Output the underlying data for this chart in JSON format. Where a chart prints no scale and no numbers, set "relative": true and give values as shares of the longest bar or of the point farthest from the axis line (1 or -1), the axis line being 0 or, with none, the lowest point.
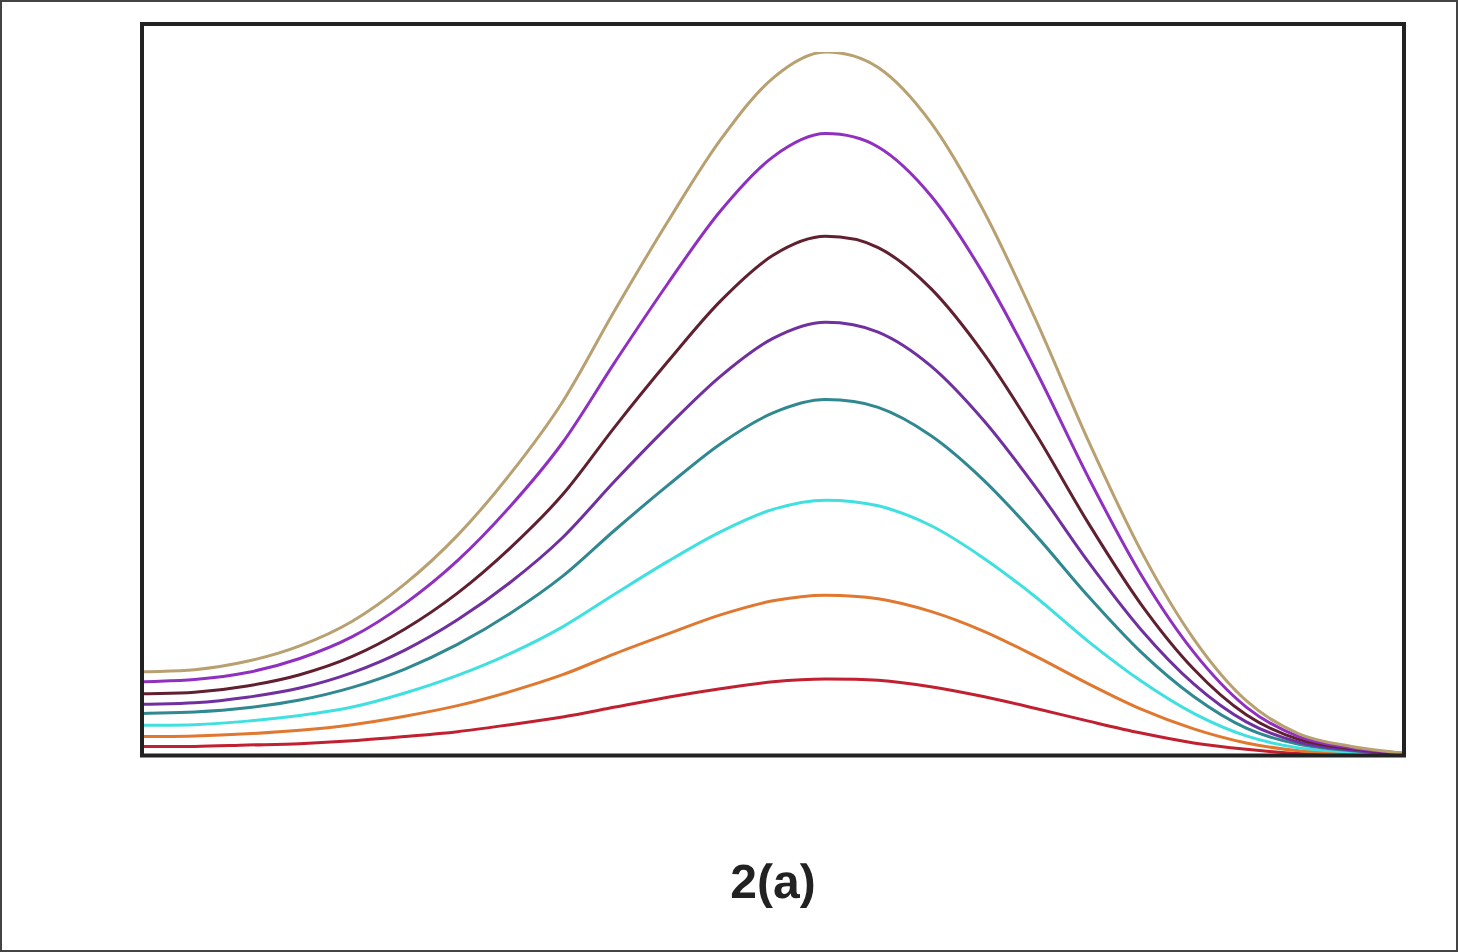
{
  "chart_data": {
    "type": "line",
    "title": "2(a)",
    "relative": true,
    "grid": false,
    "legend": false,
    "marker": "none",
    "line_style": "solid",
    "categories": [
      null,
      null,
      null,
      null,
      null,
      null,
      null,
      null,
      null,
      null,
      null,
      null,
      null,
      null,
      null,
      null,
      null,
      null,
      null,
      null,
      null,
      null,
      null,
      null,
      null
    ],
    "series": [
      {
        "color": "#b8a070",
        "values": [
          0.119,
          0.122,
          0.134,
          0.156,
          0.191,
          0.244,
          0.313,
          0.4,
          0.503,
          0.634,
          0.759,
          0.875,
          0.963,
          1,
          0.978,
          0.9,
          0.775,
          0.619,
          0.447,
          0.291,
          0.166,
          0.078,
          0.031,
          0.013,
          0.003
        ]
      },
      {
        "color": "#9030c0",
        "values": [
          0.105,
          0.108,
          0.118,
          0.138,
          0.169,
          0.216,
          0.277,
          0.354,
          0.445,
          0.56,
          0.671,
          0.774,
          0.851,
          0.884,
          0.865,
          0.796,
          0.685,
          0.547,
          0.395,
          0.257,
          0.147,
          0.069,
          0.027,
          0.011,
          0.003
        ]
      },
      {
        "color": "#602030",
        "values": [
          0.088,
          0.09,
          0.099,
          0.115,
          0.141,
          0.18,
          0.231,
          0.295,
          0.371,
          0.468,
          0.56,
          0.646,
          0.711,
          0.738,
          0.722,
          0.664,
          0.572,
          0.457,
          0.33,
          0.215,
          0.123,
          0.058,
          0.023,
          0.01,
          0.002
        ]
      },
      {
        "color": "#7030a0",
        "values": [
          0.073,
          0.075,
          0.083,
          0.096,
          0.118,
          0.15,
          0.193,
          0.246,
          0.31,
          0.391,
          0.468,
          0.539,
          0.593,
          0.616,
          0.602,
          0.554,
          0.477,
          0.381,
          0.275,
          0.179,
          0.102,
          0.048,
          0.019,
          0.008,
          0.002
        ]
      },
      {
        "color": "#308890",
        "values": [
          0.06,
          0.062,
          0.068,
          0.079,
          0.097,
          0.123,
          0.158,
          0.202,
          0.255,
          0.321,
          0.384,
          0.443,
          0.487,
          0.506,
          0.495,
          0.455,
          0.392,
          0.313,
          0.226,
          0.147,
          0.084,
          0.039,
          0.016,
          0.007,
          0.002
        ]
      },
      {
        "color": "#40e0e0",
        "values": [
          0.043,
          0.044,
          0.049,
          0.057,
          0.069,
          0.089,
          0.114,
          0.145,
          0.183,
          0.23,
          0.276,
          0.318,
          0.35,
          0.363,
          0.355,
          0.327,
          0.281,
          0.225,
          0.162,
          0.106,
          0.06,
          0.028,
          0.011,
          0.005,
          0.001
        ]
      },
      {
        "color": "#e07830",
        "values": [
          0.027,
          0.028,
          0.031,
          0.036,
          0.044,
          0.056,
          0.071,
          0.091,
          0.115,
          0.145,
          0.173,
          0.2,
          0.22,
          0.228,
          0.223,
          0.205,
          0.177,
          0.141,
          0.102,
          0.066,
          0.038,
          0.018,
          0.007,
          0.003,
          0.001
        ]
      },
      {
        "color": "#c02030",
        "values": [
          0.013,
          0.013,
          0.015,
          0.017,
          0.021,
          0.027,
          0.034,
          0.044,
          0.055,
          0.069,
          0.083,
          0.095,
          0.105,
          0.109,
          0.107,
          0.098,
          0.084,
          0.067,
          0.049,
          0.032,
          0.018,
          0.009,
          0.003,
          0.001,
          0
        ]
      }
    ]
  }
}
